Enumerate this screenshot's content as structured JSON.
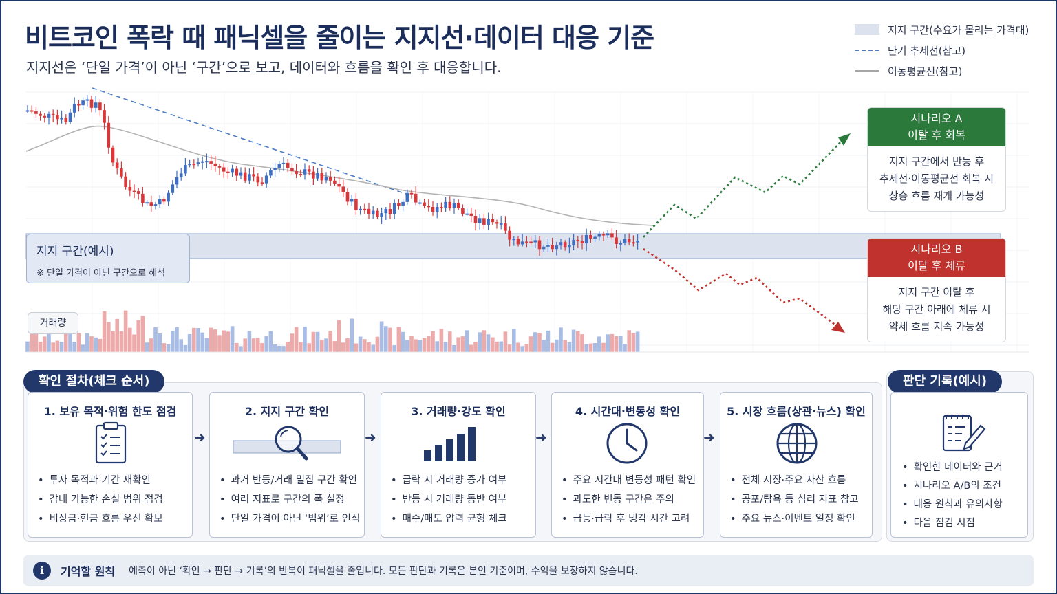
{
  "header": {
    "title": "비트코인 폭락 때 패닉셀을 줄이는 지지선·데이터 대응 기준",
    "subtitle": "지지선은 ‘단일 가격’이 아닌 ‘구간’으로 보고, 데이터와 흐름을 확인 후 대응합니다."
  },
  "legend": {
    "items": [
      {
        "label": "지지 구간(수요가 몰리는 가격대)",
        "style": "zone"
      },
      {
        "label": "단기 추세선(참고)",
        "style": "dash"
      },
      {
        "label": "이동평균선(참고)",
        "style": "line"
      }
    ]
  },
  "zone": {
    "title": "지지 구간(예시)",
    "note": "※ 단일 가격이 아닌 구간으로 해석"
  },
  "volume_label": "거래량",
  "scenarios": {
    "a": {
      "title_line1": "시나리오 A",
      "title_line2": "이탈 후 회복",
      "body": [
        "지지 구간에서 반등 후",
        "추세선·이동평균선 회복 시",
        "상승 흐름 재개 가능성"
      ]
    },
    "b": {
      "title_line1": "시나리오 B",
      "title_line2": "이탈 후 체류",
      "body": [
        "지지 구간 이탈 후",
        "해당 구간 아래에 체류 시",
        "약세 흐름 지속 가능성"
      ]
    }
  },
  "colors": {
    "navy": "#22386b",
    "up_candle": "#3f6fc2",
    "down_candle": "#d9383a",
    "scenario_a": "#2b7a3b",
    "scenario_b": "#c0322d"
  },
  "process": {
    "title": "확인 절차(체크 순서)",
    "steps": [
      {
        "title": "1. 보유 목적·위험 한도 점검",
        "icon": "clipboard-checklist-icon",
        "items": [
          "투자 목적과 기간 재확인",
          "감내 가능한 손실 범위 점검",
          "비상금·현금 흐름 우선 확보"
        ]
      },
      {
        "title": "2. 지지 구간 확인",
        "icon": "magnifier-icon",
        "items": [
          "과거 반등/거래 밀집 구간 확인",
          "여러 지표로 구간의 폭 설정",
          "단일 가격이 아닌 ‘범위’로 인식"
        ]
      },
      {
        "title": "3. 거래량·강도 확인",
        "icon": "bar-chart-icon",
        "items": [
          "급락 시 거래량 증가 여부",
          "반등 시 거래량 동반 여부",
          "매수/매도 압력 균형 체크"
        ]
      },
      {
        "title": "4. 시간대·변동성 확인",
        "icon": "clock-icon",
        "items": [
          "주요 시간대 변동성 패턴 확인",
          "과도한 변동 구간은 주의",
          "급등·급락 후 냉각 시간 고려"
        ]
      },
      {
        "title": "5. 시장 흐름(상관·뉴스) 확인",
        "icon": "globe-icon",
        "items": [
          "전체 시장·주요 자산 흐름",
          "공포/탐욕 등 심리 지표 참고",
          "주요 뉴스·이벤트 일정 확인"
        ]
      }
    ]
  },
  "record": {
    "title": "판단 기록(예시)",
    "icon": "notepad-pencil-icon",
    "items": [
      "확인한 데이터와 근거",
      "시나리오 A/B의 조건",
      "대응 원칙과 유의사항",
      "다음 점검 시점"
    ]
  },
  "principle": {
    "heading": "기억할 원칙",
    "text": "예측이 아닌 ‘확인 → 판단 → 기록’의 반복이 패닉셀을 줄입니다. 모든 판단과 기록은 본인 기준이며, 수익을 보장하지 않습니다."
  }
}
